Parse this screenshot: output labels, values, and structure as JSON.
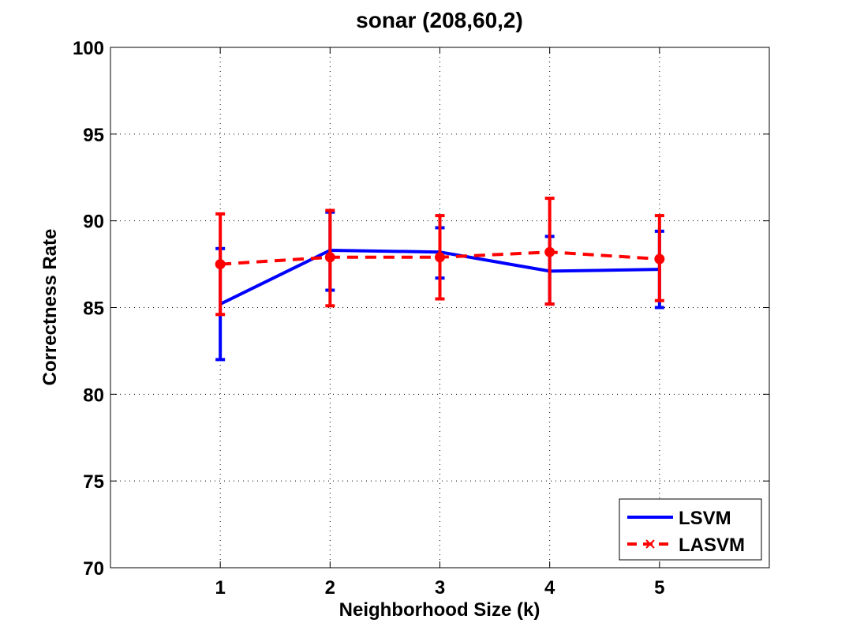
{
  "chart_data": {
    "type": "line",
    "title": "sonar (208,60,2)",
    "xlabel": "Neighborhood Size (k)",
    "ylabel": "Correctness Rate",
    "x": [
      1,
      2,
      3,
      4,
      5
    ],
    "xlim": [
      0,
      6
    ],
    "ylim": [
      70,
      100
    ],
    "xticks": [
      "1",
      "2",
      "3",
      "4",
      "5"
    ],
    "yticks": [
      "70",
      "75",
      "80",
      "85",
      "90",
      "95",
      "100"
    ],
    "grid": true,
    "legend_position": "bottom-right",
    "series": [
      {
        "name": "LSVM",
        "color": "#0000ff",
        "line_style": "solid",
        "marker": "none",
        "values": [
          85.2,
          88.3,
          88.2,
          87.1,
          87.2
        ],
        "error_low": [
          82.0,
          86.0,
          86.7,
          85.2,
          85.0
        ],
        "error_high": [
          88.4,
          90.5,
          89.6,
          89.1,
          89.4
        ]
      },
      {
        "name": "LASVM",
        "color": "#ff0000",
        "line_style": "dashed",
        "marker": "dot",
        "values": [
          87.5,
          87.9,
          87.9,
          88.2,
          87.8
        ],
        "error_low": [
          84.6,
          85.1,
          85.5,
          85.2,
          85.4
        ],
        "error_high": [
          90.4,
          90.6,
          90.3,
          91.3,
          90.3
        ]
      }
    ]
  }
}
